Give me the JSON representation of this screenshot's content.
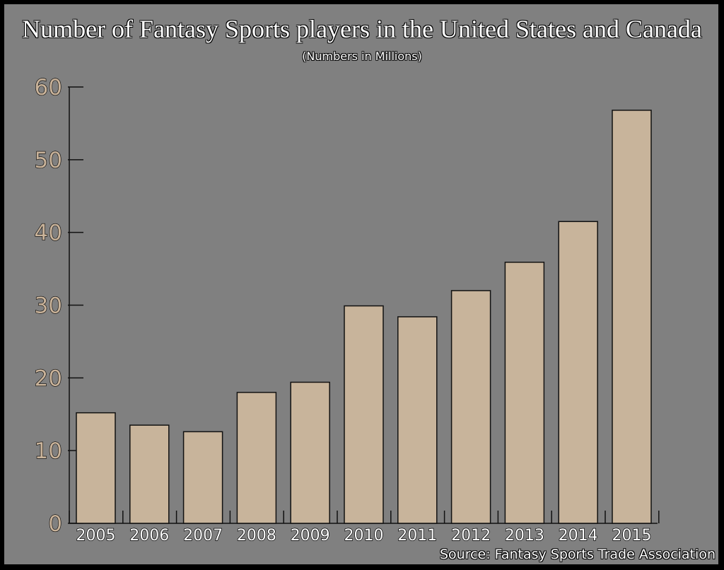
{
  "chart_data": {
    "type": "bar",
    "title": "Number of Fantasy Sports players in the United States and Canada",
    "subtitle": "(Numbers in Millions)",
    "source": "Source:  Fantasy Sports Trade Association",
    "categories": [
      "2005",
      "2006",
      "2007",
      "2008",
      "2009",
      "2010",
      "2011",
      "2012",
      "2013",
      "2014",
      "2015"
    ],
    "values": [
      15.2,
      13.5,
      12.6,
      18.0,
      19.4,
      29.9,
      28.4,
      32.0,
      35.9,
      41.5,
      56.8
    ],
    "ylim": [
      0,
      60
    ],
    "yticks": [
      "0",
      "10",
      "20",
      "30",
      "40",
      "50",
      "60"
    ],
    "grid": false,
    "bar_color": "#c8b49b",
    "background_color": "#808080"
  }
}
